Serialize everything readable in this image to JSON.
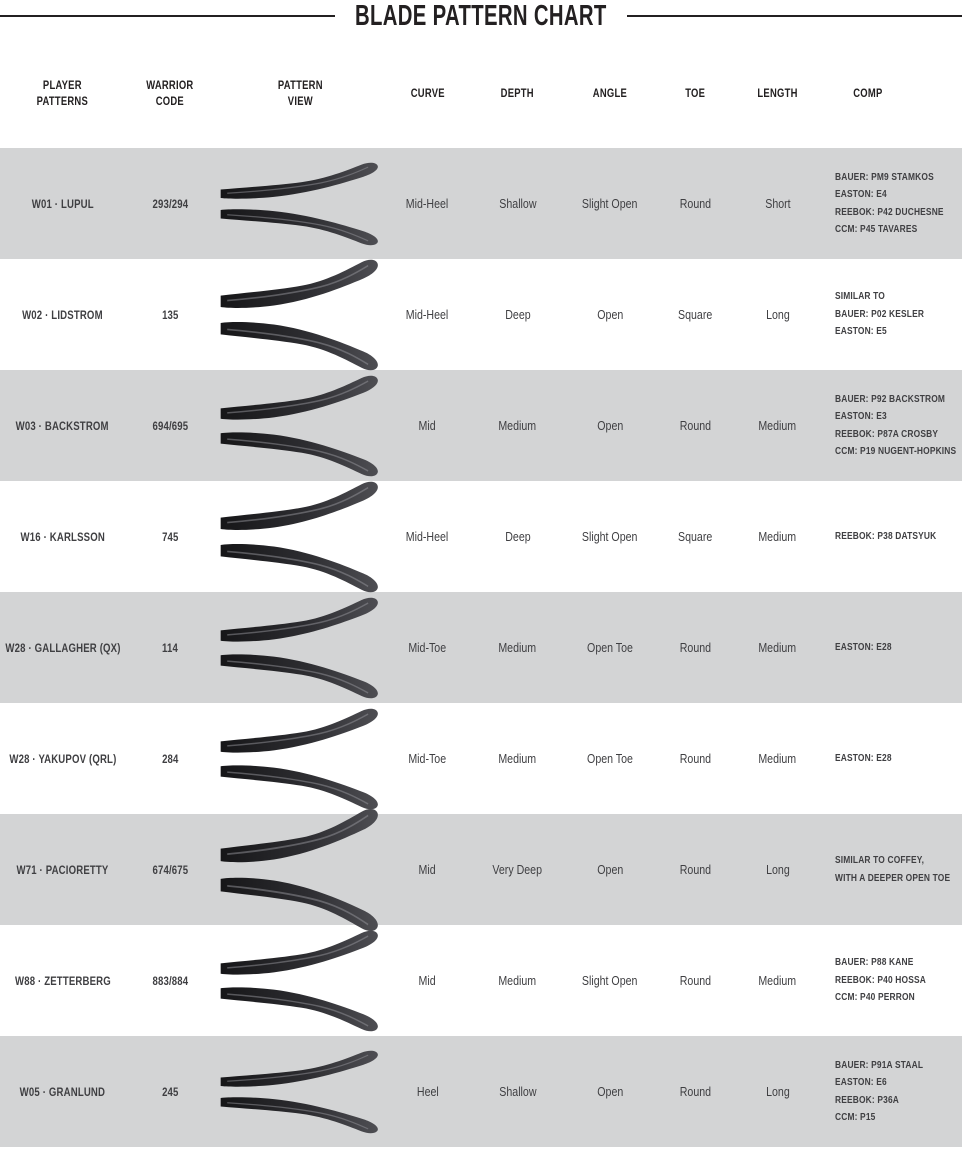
{
  "title": "BLADE PATTERN CHART",
  "columns": [
    "PLAYER\nPATTERNS",
    "WARRIOR\nCODE",
    "PATTERN\nVIEW",
    "CURVE",
    "DEPTH",
    "ANGLE",
    "TOE",
    "LENGTH",
    "COMP"
  ],
  "colors": {
    "row_shade": "#d3d4d5",
    "row_plain": "#ffffff",
    "title_ink": "#232021",
    "text": "#3f3f42",
    "blade_dark": "#1a1a1c",
    "blade_light": "#4e4e53"
  },
  "pattern_view_icon": "blade-top-and-side-silhouette-icon",
  "rows": [
    {
      "player": "W01 · LUPUL",
      "code": "293/294",
      "curve": "Mid-Heel",
      "depth": "Shallow",
      "angle": "Slight Open",
      "toe": "Round",
      "length": "Short",
      "comp_lines": [
        "BAUER: PM9 STAMKOS",
        "EASTON: E4",
        "REEBOK: P42 DUCHESNE",
        "CCM: P45 TAVARES"
      ]
    },
    {
      "player": "W02 · LIDSTROM",
      "code": "135",
      "curve": "Mid-Heel",
      "depth": "Deep",
      "angle": "Open",
      "toe": "Square",
      "length": "Long",
      "comp_lines": [
        "SIMILAR TO",
        "BAUER: P02 KESLER",
        "EASTON: E5"
      ]
    },
    {
      "player": "W03 · BACKSTROM",
      "code": "694/695",
      "curve": "Mid",
      "depth": "Medium",
      "angle": "Open",
      "toe": "Round",
      "length": "Medium",
      "comp_lines": [
        "BAUER: P92 BACKSTROM",
        "EASTON: E3",
        "REEBOK: P87A CROSBY",
        "CCM: P19 NUGENT-HOPKINS"
      ]
    },
    {
      "player": "W16 · KARLSSON",
      "code": "745",
      "curve": "Mid-Heel",
      "depth": "Deep",
      "angle": "Slight Open",
      "toe": "Square",
      "length": "Medium",
      "comp_lines": [
        "REEBOK: P38 DATSYUK"
      ]
    },
    {
      "player": "W28 · GALLAGHER (QX)",
      "code": "114",
      "curve": "Mid-Toe",
      "depth": "Medium",
      "angle": "Open Toe",
      "toe": "Round",
      "length": "Medium",
      "comp_lines": [
        "EASTON: E28"
      ]
    },
    {
      "player": "W28 · YAKUPOV (QRL)",
      "code": "284",
      "curve": "Mid-Toe",
      "depth": "Medium",
      "angle": "Open Toe",
      "toe": "Round",
      "length": "Medium",
      "comp_lines": [
        "EASTON: E28"
      ]
    },
    {
      "player": "W71 · PACIORETTY",
      "code": "674/675",
      "curve": "Mid",
      "depth": "Very Deep",
      "angle": "Open",
      "toe": "Round",
      "length": "Long",
      "comp_lines": [
        "SIMILAR TO COFFEY,",
        "WITH A DEEPER OPEN TOE"
      ]
    },
    {
      "player": "W88 · ZETTERBERG",
      "code": "883/884",
      "curve": "Mid",
      "depth": "Medium",
      "angle": "Slight Open",
      "toe": "Round",
      "length": "Medium",
      "comp_lines": [
        "BAUER: P88 KANE",
        "REEBOK: P40 HOSSA",
        "CCM: P40 PERRON"
      ]
    },
    {
      "player": "W05 · GRANLUND",
      "code": "245",
      "curve": "Heel",
      "depth": "Shallow",
      "angle": "Open",
      "toe": "Round",
      "length": "Long",
      "comp_lines": [
        "BAUER: P91A STAAL",
        "EASTON: E6",
        "REEBOK: P36A",
        "CCM: P15"
      ]
    }
  ]
}
